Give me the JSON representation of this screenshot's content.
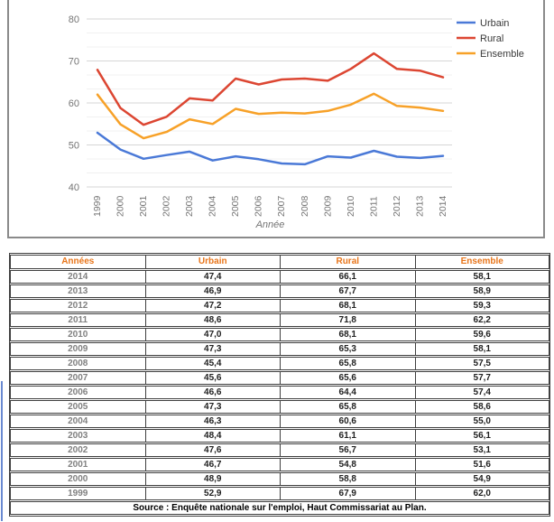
{
  "chart_data": {
    "type": "line",
    "title": "",
    "x": [
      "1999",
      "2000",
      "2001",
      "2002",
      "2003",
      "2004",
      "2005",
      "2006",
      "2007",
      "2008",
      "2009",
      "2010",
      "2011",
      "2012",
      "2013",
      "2014"
    ],
    "xlabel": "Année",
    "ylabel": "",
    "ylim": [
      40,
      80
    ],
    "yticks": [
      80,
      70,
      60,
      50,
      40
    ],
    "grid": true,
    "legend_position": "right",
    "series": [
      {
        "name": "Urbain",
        "color": "#4A79D7",
        "values": [
          52.9,
          48.9,
          46.7,
          47.6,
          48.4,
          46.3,
          47.3,
          46.6,
          45.6,
          45.4,
          47.3,
          47.0,
          48.6,
          47.2,
          46.9,
          47.4
        ]
      },
      {
        "name": "Rural",
        "color": "#DC4632",
        "values": [
          67.9,
          58.8,
          54.8,
          56.7,
          61.1,
          60.6,
          65.8,
          64.4,
          65.6,
          65.8,
          65.3,
          68.1,
          71.8,
          68.1,
          67.7,
          66.1
        ]
      },
      {
        "name": "Ensemble",
        "color": "#F7A128",
        "values": [
          62.0,
          54.9,
          51.6,
          53.1,
          56.1,
          55.0,
          58.6,
          57.4,
          57.7,
          57.5,
          58.1,
          59.6,
          62.2,
          59.3,
          58.9,
          58.1
        ]
      }
    ]
  },
  "table": {
    "headers": [
      "Années",
      "Urbain",
      "Rural",
      "Ensemble"
    ],
    "rows": [
      [
        "2014",
        "47,4",
        "66,1",
        "58,1"
      ],
      [
        "2013",
        "46,9",
        "67,7",
        "58,9"
      ],
      [
        "2012",
        "47,2",
        "68,1",
        "59,3"
      ],
      [
        "2011",
        "48,6",
        "71,8",
        "62,2"
      ],
      [
        "2010",
        "47,0",
        "68,1",
        "59,6"
      ],
      [
        "2009",
        "47,3",
        "65,3",
        "58,1"
      ],
      [
        "2008",
        "45,4",
        "65,8",
        "57,5"
      ],
      [
        "2007",
        "45,6",
        "65,6",
        "57,7"
      ],
      [
        "2006",
        "46,6",
        "64,4",
        "57,4"
      ],
      [
        "2005",
        "47,3",
        "65,8",
        "58,6"
      ],
      [
        "2004",
        "46,3",
        "60,6",
        "55,0"
      ],
      [
        "2003",
        "48,4",
        "61,1",
        "56,1"
      ],
      [
        "2002",
        "47,6",
        "56,7",
        "53,1"
      ],
      [
        "2001",
        "46,7",
        "54,8",
        "51,6"
      ],
      [
        "2000",
        "48,9",
        "58,8",
        "54,9"
      ],
      [
        "1999",
        "52,9",
        "67,9",
        "62,0"
      ]
    ],
    "source": "Source : Enquête nationale sur l'emploi, Haut Commissariat au Plan."
  },
  "colors": {
    "header_text": "#E8751A",
    "year_text": "#808080",
    "value_text": "#1F1F1F",
    "table_border": "#3F3F3F",
    "axis_text": "#757575",
    "major_grid": "#D6D6D6",
    "minor_grid": "#F0F0F0",
    "legend_text": "#3A3A3A"
  }
}
